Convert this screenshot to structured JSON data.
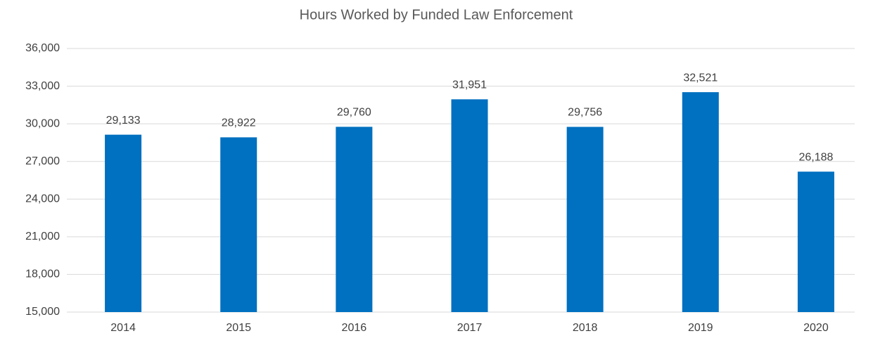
{
  "chart_data": {
    "type": "bar",
    "title": "Hours Worked by Funded Law Enforcement",
    "categories": [
      "2014",
      "2015",
      "2016",
      "2017",
      "2018",
      "2019",
      "2020"
    ],
    "values": [
      29133,
      28922,
      29760,
      31951,
      29756,
      32521,
      26188
    ],
    "value_labels": [
      "29,133",
      "28,922",
      "29,760",
      "31,951",
      "29,756",
      "32,521",
      "26,188"
    ],
    "color": "#0070c0",
    "ylim": [
      15000,
      36000
    ],
    "yticks": [
      {
        "value": 15000,
        "label": "15,000"
      },
      {
        "value": 18000,
        "label": "18,000"
      },
      {
        "value": 21000,
        "label": "21,000"
      },
      {
        "value": 24000,
        "label": "24,000"
      },
      {
        "value": 27000,
        "label": "27,000"
      },
      {
        "value": 30000,
        "label": "30,000"
      },
      {
        "value": 33000,
        "label": "33,000"
      },
      {
        "value": 36000,
        "label": "36,000"
      }
    ],
    "grid": true
  }
}
